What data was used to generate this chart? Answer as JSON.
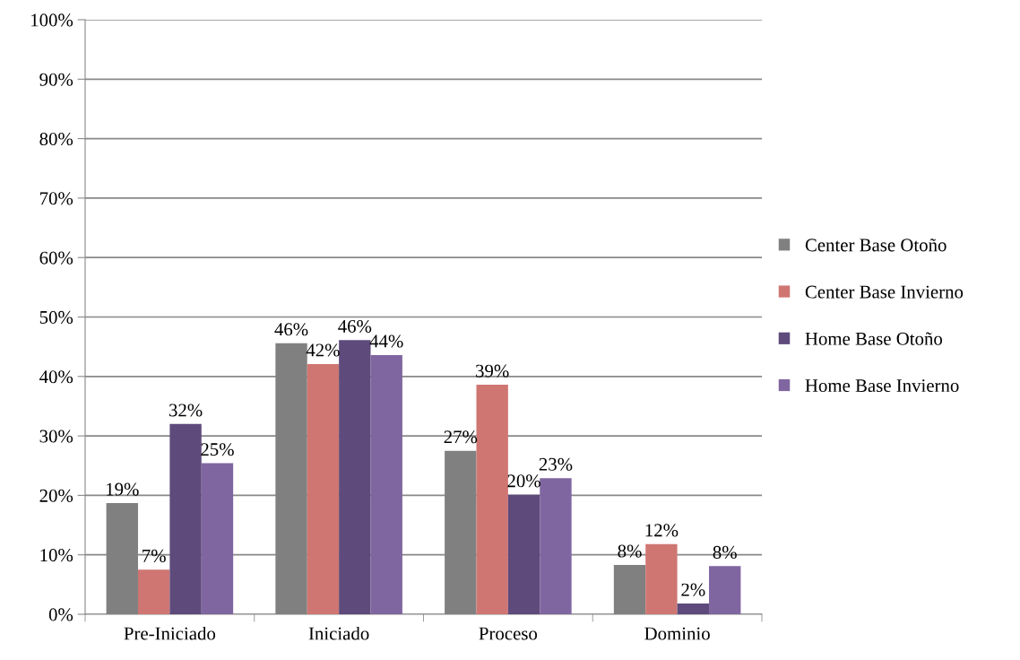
{
  "chart_data": {
    "type": "bar",
    "categories": [
      "Pre-Iniciado",
      "Iniciado",
      "Proceso",
      "Dominio"
    ],
    "series": [
      {
        "name": "Center Base Otoño",
        "color": "#808080",
        "values": [
          18.7,
          45.6,
          27.5,
          8.3
        ],
        "value_labels": [
          "19%",
          "46%",
          "27%",
          "8%"
        ]
      },
      {
        "name": "Center Base Invierno",
        "color": "#cf7673",
        "values": [
          7.5,
          42.1,
          38.6,
          11.8
        ],
        "value_labels": [
          "7%",
          "42%",
          "39%",
          "12%"
        ]
      },
      {
        "name": "Home Base Otoño",
        "color": "#5e4a7b",
        "values": [
          32.0,
          46.1,
          20.1,
          1.8
        ],
        "value_labels": [
          "32%",
          "46%",
          "20%",
          "2%"
        ]
      },
      {
        "name": "Home Base Invierno",
        "color": "#8066a0",
        "values": [
          25.4,
          43.6,
          22.9,
          8.1
        ],
        "value_labels": [
          "25%",
          "44%",
          "23%",
          "8%"
        ]
      }
    ],
    "ylim": [
      0,
      100
    ],
    "yticks": [
      {
        "value": 0,
        "label": "0%"
      },
      {
        "value": 10,
        "label": "10%"
      },
      {
        "value": 20,
        "label": "20%"
      },
      {
        "value": 30,
        "label": "30%"
      },
      {
        "value": 40,
        "label": "40%"
      },
      {
        "value": 50,
        "label": "50%"
      },
      {
        "value": 60,
        "label": "60%"
      },
      {
        "value": 70,
        "label": "70%"
      },
      {
        "value": 80,
        "label": "80%"
      },
      {
        "value": 90,
        "label": "90%"
      },
      {
        "value": 100,
        "label": "100%"
      }
    ],
    "grid": "y",
    "legend": "right"
  }
}
